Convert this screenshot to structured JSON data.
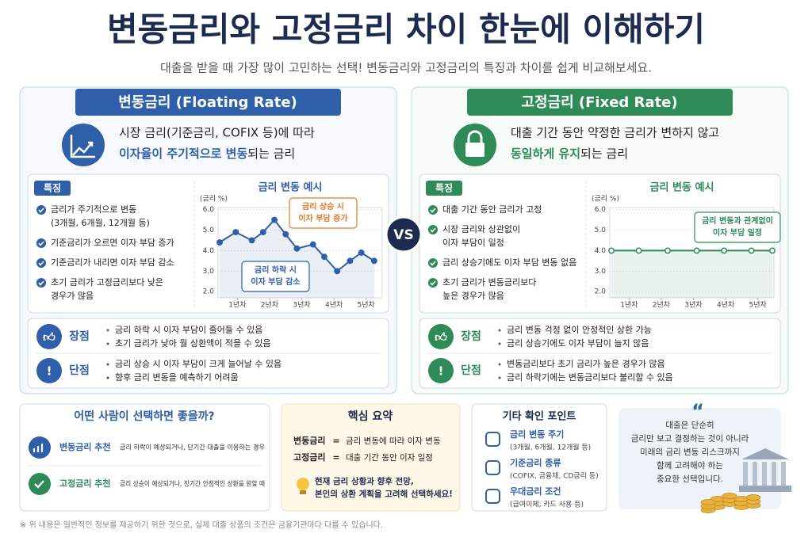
{
  "title": "변동금리와 고정금리 차이 한눈에 이해하기",
  "subtitle": "대출을 받을 때 가장 많이 고민하는 선택!  변동금리와 고정금리의 특징과 차이를 쉽게 비교해보세요.",
  "vs": "VS",
  "panels": [
    {
      "header": "변동금리 (Floating Rate)",
      "color": "#2f5fa8",
      "desc": {
        "line1": "시장 금리(기준금리, COFIX 등)에 따라",
        "highlight": "이자율이 주기적으로 변동",
        "rest": "되는 금리"
      },
      "features_label": "특징",
      "features": [
        [
          "금리가 주기적으로 변동",
          "(3개월, 6개월, 12개월 등)"
        ],
        [
          "기준금리가 오르면 이자 부담 증가"
        ],
        [
          "기준금리가 내리면 이자 부담 감소"
        ],
        [
          "초기 금리가 고정금리보다 낮은",
          "경우가 많음"
        ]
      ],
      "chart": {
        "type": "line",
        "title": "금리 변동 예시",
        "y_label": "(금리 %)",
        "x": [
          0.45,
          0.95,
          1.45,
          1.8,
          2.15,
          2.5,
          2.85,
          3.35,
          3.7,
          4.1,
          4.5,
          4.85,
          5.25
        ],
        "values": [
          4.4,
          4.9,
          4.5,
          4.9,
          5.5,
          4.8,
          4.1,
          4.3,
          3.7,
          3.0,
          3.5,
          3.9,
          3.5
        ],
        "xlim": [
          0.4,
          5.5
        ],
        "ylim": [
          1.7,
          6.1
        ],
        "xticks": [
          {
            "value": 1,
            "label": "1년차"
          },
          {
            "value": 2,
            "label": "2년차"
          },
          {
            "value": 3,
            "label": "3년차"
          },
          {
            "value": 4,
            "label": "4년차"
          },
          {
            "value": 5,
            "label": "5년차"
          }
        ],
        "yticks": [
          {
            "value": 6,
            "label": "6.0"
          },
          {
            "value": 5,
            "label": "5.0"
          },
          {
            "value": 4,
            "label": "4.0"
          },
          {
            "value": 3,
            "label": "3.0"
          },
          {
            "value": 2,
            "label": "2.0"
          }
        ],
        "annotations": [
          {
            "lines": [
              "금리 상승 시",
              "이자 부담 증가"
            ]
          },
          {
            "lines": [
              "금리 하락 시",
              "이자 부담 감소"
            ]
          }
        ]
      },
      "pros": {
        "label": "장점",
        "items": [
          "금리 하락 시 이자 부담이 줄어들 수 있음",
          "초기 금리가 낮아 월 상환액이 적을 수 있음"
        ]
      },
      "cons": {
        "label": "단점",
        "items": [
          "금리 상승 시 이자 부담이 크게 늘어날 수 있음",
          "향후 금리 변동을 예측하기 어려움"
        ]
      }
    },
    {
      "header": "고정금리 (Fixed Rate)",
      "color": "#2e8b57",
      "desc": {
        "line1": "대출 기간 동안 약정한 금리가 변하지 않고",
        "highlight": "동일하게 유지",
        "rest": "되는 금리"
      },
      "features_label": "특징",
      "features": [
        [
          "대출 기간 동안 금리가 고정"
        ],
        [
          "시장 금리와 상관없이",
          "이자 부담이 일정"
        ],
        [
          "금리 상승기에도 이자 부담 변동 없음"
        ],
        [
          "초기 금리가 변동금리보다",
          "높은 경우가 많음"
        ]
      ],
      "chart": {
        "type": "line",
        "title": "금리 변동 예시",
        "y_label": "(금리 %)",
        "x": [
          0.45,
          1.3,
          2.2,
          3.1,
          3.95,
          4.8,
          5.45
        ],
        "values": [
          4.0,
          4.0,
          4.0,
          4.0,
          4.0,
          4.0,
          4.0
        ],
        "xlim": [
          0.4,
          5.5
        ],
        "ylim": [
          1.7,
          6.1
        ],
        "xticks": [
          {
            "value": 1,
            "label": "1년차"
          },
          {
            "value": 2,
            "label": "2년차"
          },
          {
            "value": 3,
            "label": "3년차"
          },
          {
            "value": 4,
            "label": "4년차"
          },
          {
            "value": 5,
            "label": "5년차"
          }
        ],
        "yticks": [
          {
            "value": 6,
            "label": "6.0"
          },
          {
            "value": 5,
            "label": "5.0"
          },
          {
            "value": 4,
            "label": "4.0"
          },
          {
            "value": 3,
            "label": "3.0"
          },
          {
            "value": 2,
            "label": "2.0"
          }
        ],
        "annotations": [
          {
            "lines": [
              "금리 변동과 관계없이",
              "이자 부담 일정"
            ]
          }
        ]
      },
      "pros": {
        "label": "장점",
        "items": [
          "금리 변동 걱정 없이 안정적인 상환 가능",
          "금리 상승기에도 이자 부담이 늘지 않음"
        ]
      },
      "cons": {
        "label": "단점",
        "items": [
          "변동금리보다 초기 금리가 높은 경우가 많음",
          "금리 하락기에는 변동금리보다 불리할 수 있음"
        ]
      }
    }
  ],
  "who": {
    "title": "어떤 사람이 선택하면 좋을까?",
    "rows": [
      {
        "label": "변동금리 추천",
        "text": "금리 하락이 예상되거나, 단기간 대출을 이용하는 경우"
      },
      {
        "label": "고정금리 추천",
        "text": "금리 상승이 예상되거나, 장기간 안정적인 상환을 원할 때"
      }
    ]
  },
  "summary": {
    "title": "핵심 요약",
    "rows": [
      {
        "term": "변동금리",
        "eq": "=",
        "def": "금리 변동에 따라 이자 변동"
      },
      {
        "term": "고정금리",
        "eq": "=",
        "def": "대출 기간 동안 이자 일정"
      }
    ],
    "tip": [
      "현재 금리 상황과 향후 전망,",
      "본인의 상환 계획을 고려해 선택하세요!"
    ]
  },
  "other": {
    "title": "기타 확인 포인트",
    "items": [
      {
        "title": "금리 변동 주기",
        "desc": "(3개월, 6개월, 12개월 등)"
      },
      {
        "title": "기준금리 종류",
        "desc": "(COFIX, 금융채, CD금리 등)"
      },
      {
        "title": "우대금리 조건",
        "desc": "(급여이체, 카드 사용 등)"
      }
    ]
  },
  "quote": {
    "mark": "“",
    "lines": [
      "대출은 단순히",
      "금리만 보고 결정하는 것이 아니라",
      "미래의 금리 변동 리스크까지",
      "함께 고려해야 하는",
      "중요한 선택입니다."
    ]
  },
  "footnote": "※ 위 내용은 일반적인 정보를 제공하기 위한 것으로, 실제 대출 상품의 조건은 금융기관마다 다를 수 있습니다."
}
